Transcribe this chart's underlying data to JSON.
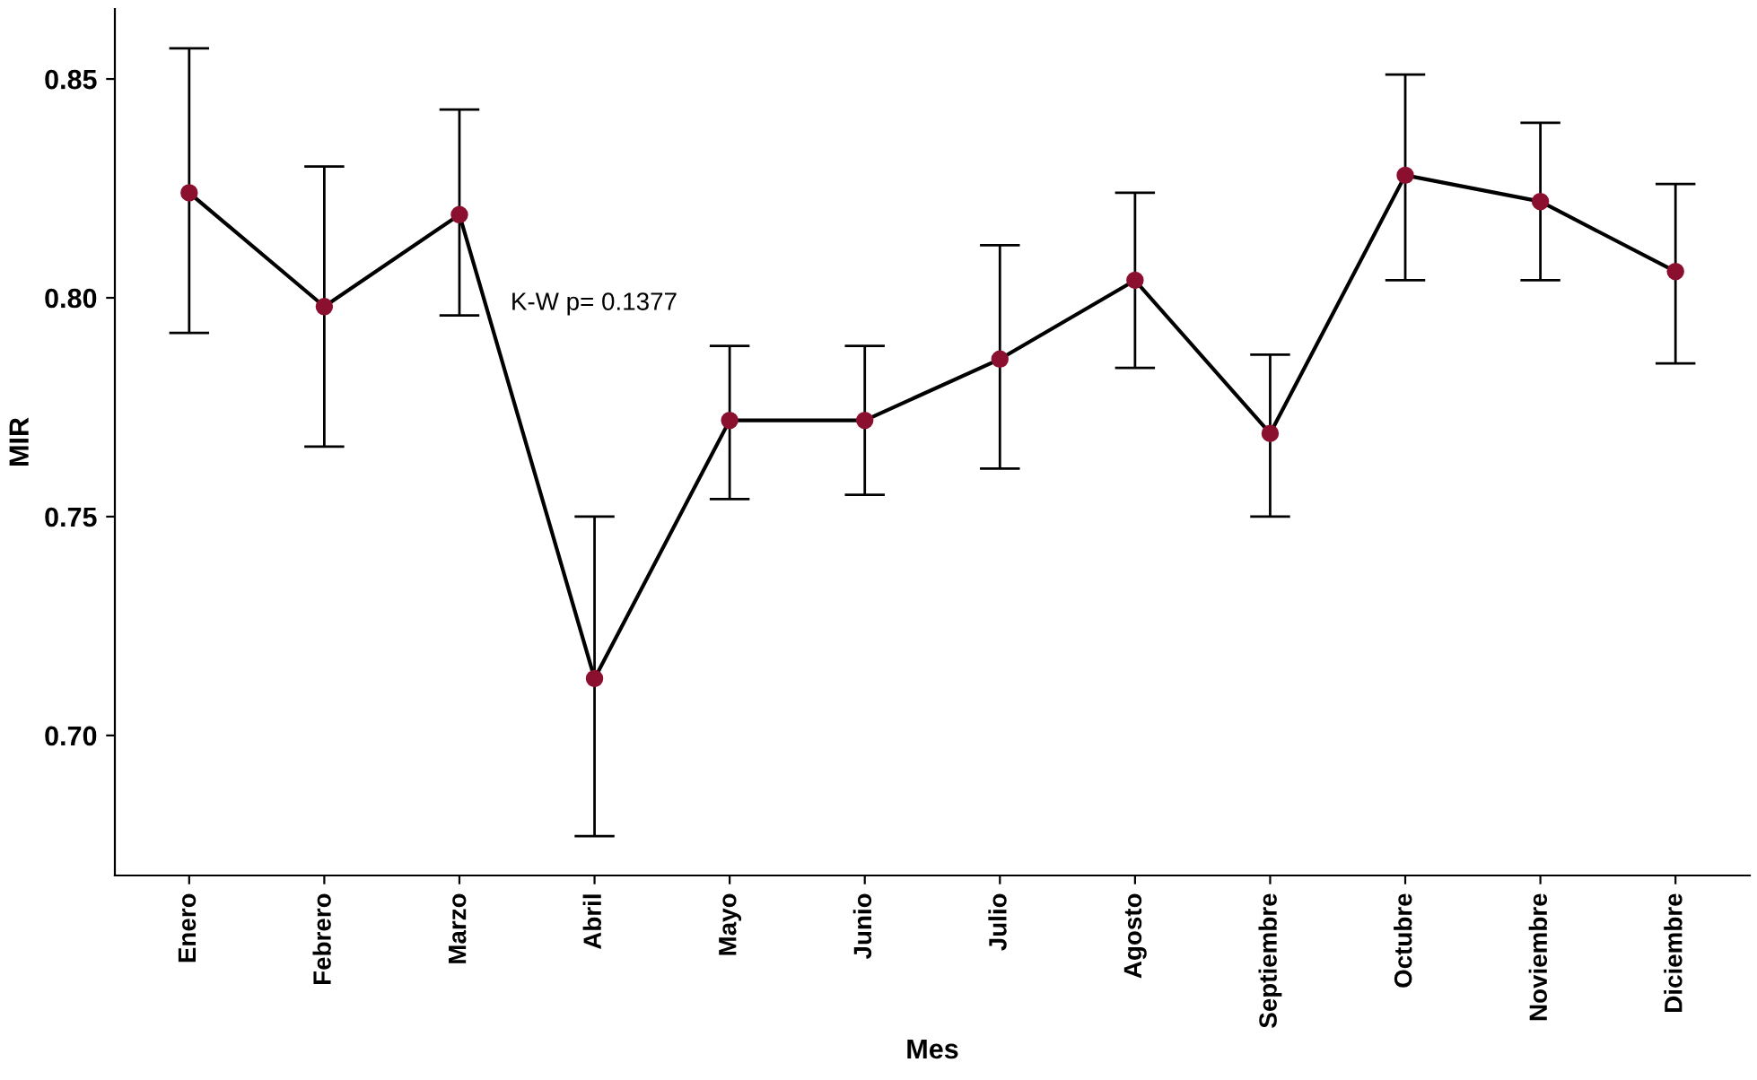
{
  "chart_data": {
    "type": "line",
    "xlabel": "Mes",
    "ylabel": "MIR",
    "categories": [
      "Enero",
      "Febrero",
      "Marzo",
      "Abril",
      "Mayo",
      "Junio",
      "Julio",
      "Agosto",
      "Septiembre",
      "Octubre",
      "Noviembre",
      "Diciembre"
    ],
    "series": [
      {
        "color": "#8b1030",
        "values": [
          0.824,
          0.798,
          0.819,
          0.713,
          0.772,
          0.772,
          0.786,
          0.804,
          0.769,
          0.828,
          0.822,
          0.806
        ],
        "errors": [
          [
            0.792,
            0.857
          ],
          [
            0.766,
            0.83
          ],
          [
            0.796,
            0.843
          ],
          [
            0.677,
            0.75
          ],
          [
            0.754,
            0.789
          ],
          [
            0.755,
            0.789
          ],
          [
            0.761,
            0.812
          ],
          [
            0.784,
            0.824
          ],
          [
            0.75,
            0.787
          ],
          [
            0.804,
            0.851
          ],
          [
            0.804,
            0.84
          ],
          [
            0.785,
            0.826
          ]
        ]
      }
    ],
    "ylim": [
      0.668,
      0.866
    ],
    "yticks": [
      {
        "value": 0.7,
        "label": "0.70"
      },
      {
        "value": 0.75,
        "label": "0.75"
      },
      {
        "value": 0.8,
        "label": "0.80"
      },
      {
        "value": 0.85,
        "label": "0.85"
      }
    ],
    "marker": "circle",
    "line_style": "solid",
    "grid": false,
    "annotations": [
      "K-W p= 0.1377"
    ]
  }
}
